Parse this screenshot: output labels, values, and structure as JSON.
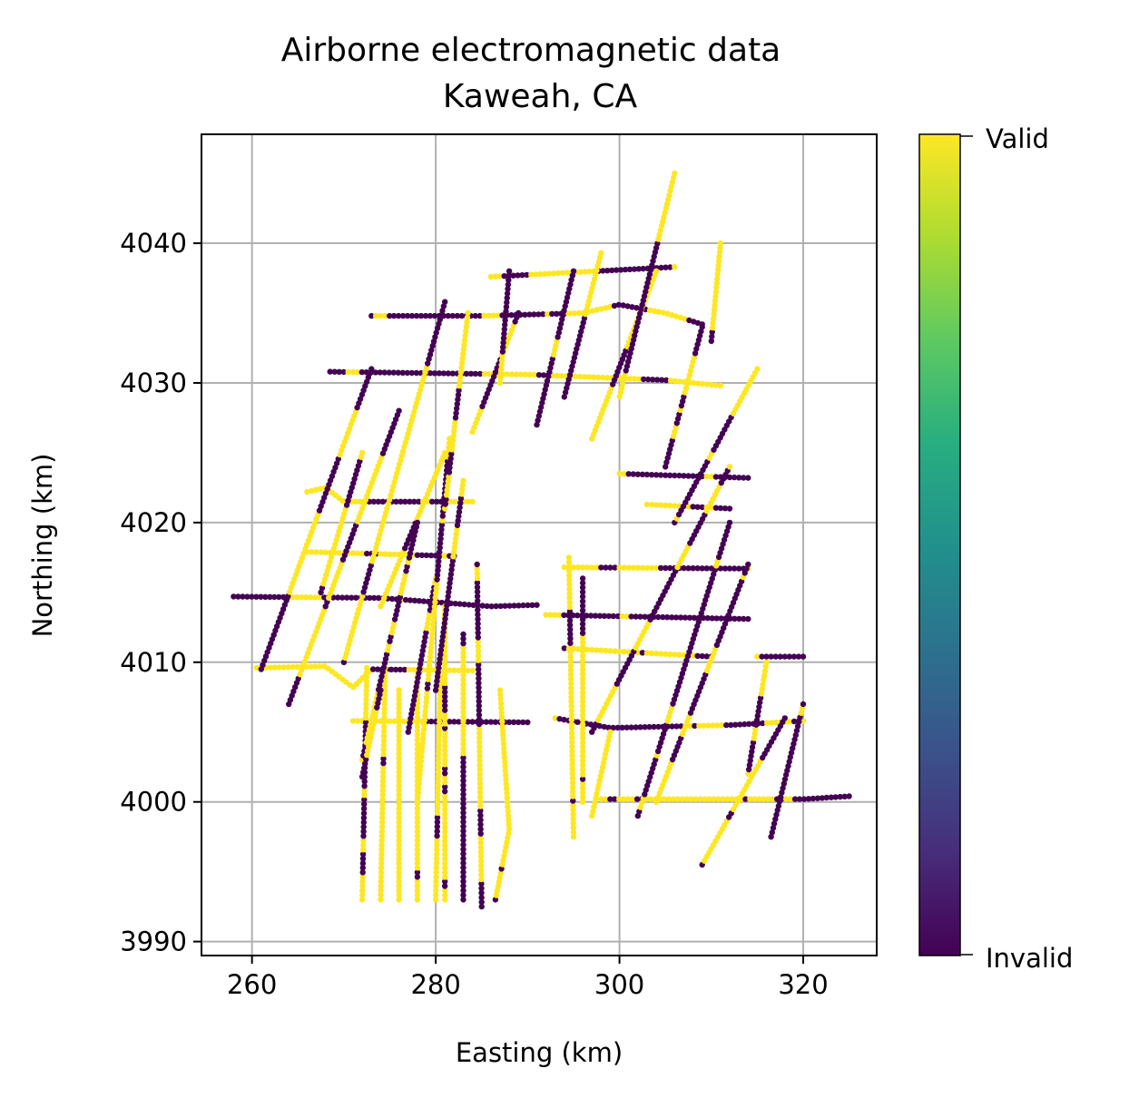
{
  "chart_data": {
    "type": "scatter",
    "title": "Airborne electromagnetic data",
    "subtitle": "Kaweah, CA",
    "xlabel": "Easting (km)",
    "ylabel": "Northing (km)",
    "xlim": [
      254.5,
      328.0
    ],
    "ylim": [
      3989.0,
      4047.8
    ],
    "xticks": [
      260,
      280,
      300,
      320
    ],
    "yticks": [
      3990,
      4000,
      4010,
      4020,
      4030,
      4040
    ],
    "grid": true,
    "colormap": "viridis",
    "colors": {
      "valid": "#fde725",
      "invalid": "#440154",
      "grid": "#b0b0b0"
    },
    "colorbar": {
      "min_label": "Invalid",
      "max_label": "Valid"
    },
    "flight_lines": [
      {
        "points": [
          [
            258,
            4014.7
          ],
          [
            274,
            4014.6
          ],
          [
            286,
            4014.0
          ],
          [
            291,
            4014.1
          ]
        ],
        "validity": 0.45
      },
      {
        "points": [
          [
            260.5,
            4009.6
          ],
          [
            268,
            4009.7
          ],
          [
            271,
            4008.2
          ],
          [
            273,
            4009.5
          ],
          [
            284,
            4009.4
          ]
        ],
        "validity": 0.5
      },
      {
        "points": [
          [
            266,
            4017.9
          ],
          [
            282,
            4017.6
          ]
        ],
        "validity": 0.45
      },
      {
        "points": [
          [
            266,
            4022.2
          ],
          [
            268,
            4022.5
          ],
          [
            270,
            4021.5
          ],
          [
            284,
            4021.5
          ]
        ],
        "validity": 0.5
      },
      {
        "points": [
          [
            268.5,
            4030.8
          ],
          [
            290,
            4030.6
          ],
          [
            305,
            4030.2
          ],
          [
            311,
            4029.8
          ]
        ],
        "validity": 0.55
      },
      {
        "points": [
          [
            273,
            4034.8
          ],
          [
            285,
            4034.8
          ],
          [
            296,
            4035.0
          ],
          [
            300,
            4035.6
          ],
          [
            305,
            4035.0
          ],
          [
            309,
            4034.2
          ]
        ],
        "validity": 0.55
      },
      {
        "points": [
          [
            286,
            4037.6
          ],
          [
            306,
            4038.3
          ]
        ],
        "validity": 0.6
      },
      {
        "points": [
          [
            271,
            4005.8
          ],
          [
            290,
            4005.7
          ]
        ],
        "validity": 0.5
      },
      {
        "points": [
          [
            292,
            4013.4
          ],
          [
            314,
            4013.1
          ]
        ],
        "validity": 0.55
      },
      {
        "points": [
          [
            294,
            4016.8
          ],
          [
            314,
            4016.7
          ]
        ],
        "validity": 0.55
      },
      {
        "points": [
          [
            294,
            4011.0
          ],
          [
            310,
            4010.4
          ]
        ],
        "validity": 0.55
      },
      {
        "points": [
          [
            293,
            4006.0
          ],
          [
            299,
            4005.3
          ],
          [
            312,
            4005.5
          ],
          [
            320,
            4005.8
          ]
        ],
        "validity": 0.55
      },
      {
        "points": [
          [
            298,
            4000.2
          ],
          [
            320,
            4000.2
          ],
          [
            325,
            4000.4
          ]
        ],
        "validity": 0.6
      },
      {
        "points": [
          [
            300,
            4023.5
          ],
          [
            314,
            4023.2
          ]
        ],
        "validity": 0.5
      },
      {
        "points": [
          [
            303,
            4021.3
          ],
          [
            312,
            4021.0
          ]
        ],
        "validity": 0.5
      },
      {
        "points": [
          [
            315,
            4010.4
          ],
          [
            320,
            4010.4
          ]
        ],
        "validity": 0.1
      },
      {
        "points": [
          [
            272,
            3993
          ],
          [
            272.5,
            4009.6
          ]
        ],
        "validity": 0.8
      },
      {
        "points": [
          [
            274,
            3993
          ],
          [
            274.5,
            4009.6
          ]
        ],
        "validity": 0.8
      },
      {
        "points": [
          [
            276,
            3993
          ],
          [
            276,
            4008
          ]
        ],
        "validity": 0.75
      },
      {
        "points": [
          [
            278,
            3993
          ],
          [
            278,
            4009
          ]
        ],
        "validity": 0.8
      },
      {
        "points": [
          [
            280,
            3993
          ],
          [
            280.5,
            4009
          ]
        ],
        "validity": 0.8
      },
      {
        "points": [
          [
            281,
            3993
          ],
          [
            281,
            4014
          ]
        ],
        "validity": 0.7
      },
      {
        "points": [
          [
            283,
            3993
          ],
          [
            283,
            4012
          ]
        ],
        "validity": 0.6
      },
      {
        "points": [
          [
            285,
            3992.5
          ],
          [
            284.5,
            4017
          ]
        ],
        "validity": 0.5
      },
      {
        "points": [
          [
            286.5,
            3993
          ],
          [
            288,
            3998
          ],
          [
            287,
            4008
          ]
        ],
        "validity": 0.6
      },
      {
        "points": [
          [
            295,
            3997.5
          ],
          [
            294.5,
            4017.5
          ]
        ],
        "validity": 0.75
      },
      {
        "points": [
          [
            296,
            4000
          ],
          [
            296,
            4016
          ]
        ],
        "validity": 0.7
      },
      {
        "points": [
          [
            297,
            3999
          ],
          [
            299,
            4005
          ]
        ],
        "validity": 0.8
      },
      {
        "points": [
          [
            264,
            4007
          ],
          [
            276,
            4028
          ]
        ],
        "validity": 0.5
      },
      {
        "points": [
          [
            261,
            4009.5
          ],
          [
            273,
            4031
          ]
        ],
        "validity": 0.5
      },
      {
        "points": [
          [
            267.5,
            4015
          ],
          [
            272,
            4025
          ]
        ],
        "validity": 0.5
      },
      {
        "points": [
          [
            270,
            4010
          ],
          [
            281,
            4035.8
          ]
        ],
        "validity": 0.5
      },
      {
        "points": [
          [
            274,
            4014
          ],
          [
            281,
            4025
          ]
        ],
        "validity": 0.55
      },
      {
        "points": [
          [
            272,
            4003
          ],
          [
            278,
            4020
          ]
        ],
        "validity": 0.5
      },
      {
        "points": [
          [
            272,
            4001.8
          ],
          [
            274,
            4008
          ]
        ],
        "validity": 0.2
      },
      {
        "points": [
          [
            277,
            4005
          ],
          [
            280,
            4016
          ]
        ],
        "validity": 0.5
      },
      {
        "points": [
          [
            280,
            4008
          ],
          [
            283,
            4023
          ]
        ],
        "validity": 0.5
      },
      {
        "points": [
          [
            278,
            4000
          ],
          [
            281.5,
            4026
          ]
        ],
        "validity": 0.6
      },
      {
        "points": [
          [
            281,
            4021
          ],
          [
            283.5,
            4035
          ]
        ],
        "validity": 0.5
      },
      {
        "points": [
          [
            284,
            4026.5
          ],
          [
            289,
            4035
          ]
        ],
        "validity": 0.6
      },
      {
        "points": [
          [
            287,
            4030
          ],
          [
            288,
            4038
          ]
        ],
        "validity": 0.6
      },
      {
        "points": [
          [
            291,
            4027
          ],
          [
            295,
            4038
          ]
        ],
        "validity": 0.5
      },
      {
        "points": [
          [
            294,
            4029
          ],
          [
            298,
            4039.3
          ]
        ],
        "validity": 0.5
      },
      {
        "points": [
          [
            297,
            4026
          ],
          [
            304,
            4038
          ]
        ],
        "validity": 0.5
      },
      {
        "points": [
          [
            300,
            4029
          ],
          [
            306,
            4045
          ]
        ],
        "validity": 0.45
      },
      {
        "points": [
          [
            305,
            4024
          ],
          [
            309,
            4034
          ]
        ],
        "validity": 0.4
      },
      {
        "points": [
          [
            310,
            4033
          ],
          [
            311,
            4040
          ]
        ],
        "validity": 0.4
      },
      {
        "points": [
          [
            306,
            4020
          ],
          [
            315,
            4031
          ]
        ],
        "validity": 0.55
      },
      {
        "points": [
          [
            297,
            4005
          ],
          [
            312,
            4024
          ]
        ],
        "validity": 0.5
      },
      {
        "points": [
          [
            302,
            3999
          ],
          [
            312,
            4020
          ]
        ],
        "validity": 0.5
      },
      {
        "points": [
          [
            309,
            3995.5
          ],
          [
            318,
            4006
          ]
        ],
        "validity": 0.55
      },
      {
        "points": [
          [
            304,
            4000
          ],
          [
            314,
            4017
          ]
        ],
        "validity": 0.5
      },
      {
        "points": [
          [
            314,
            4002
          ],
          [
            316,
            4010
          ]
        ],
        "validity": 0.45
      },
      {
        "points": [
          [
            316.5,
            3997.5
          ],
          [
            320,
            4007
          ]
        ],
        "validity": 0.35
      }
    ]
  }
}
